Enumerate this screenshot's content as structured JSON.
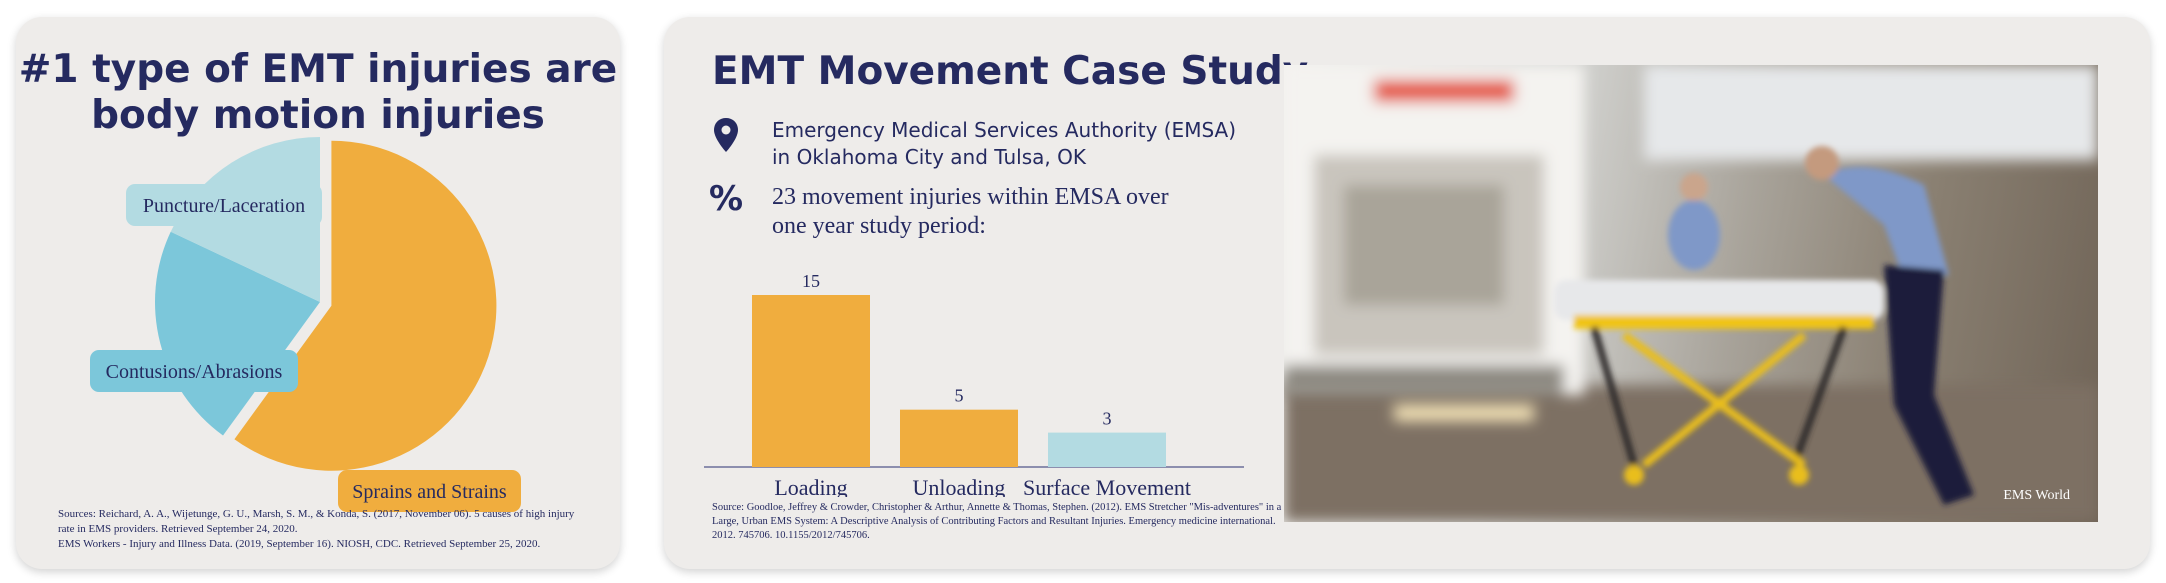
{
  "left_panel": {
    "title": "#1 type of EMT injuries are body motion injuries",
    "sources": [
      "Sources: Reichard, A. A., Wijetunge, G. U., Marsh, S. M., & Konda, S. (2017, November 06). 5 causes of high injury rate in EMS providers. Retrieved September 24, 2020.",
      "EMS Workers - Injury and Illness Data. (2019, September 16). NIOSH, CDC. Retrieved September 25, 2020."
    ]
  },
  "right_panel": {
    "title": "EMT Movement Case Study",
    "location_icon": "map-pin-icon",
    "location_text": "Emergency Medical Services Authority (EMSA)\nin Oklahoma City and Tulsa, OK",
    "percent_icon": "%",
    "percent_text": "23 movement injuries within EMSA over\none year study period:",
    "sources": "Source: Goodloe, Jeffrey & Crowder, Christopher & Arthur, Annette & Thomas, Stephen. (2012). EMS Stretcher \"Mis-adventures\" in a Large, Urban EMS System: A Descriptive Analysis of Contributing Factors and Resultant Injuries. Emergency medicine international. 2012. 745706. 10.1155/2012/745706.",
    "photo_credit": "EMS World"
  },
  "chart_data": [
    {
      "type": "pie",
      "title": "",
      "slices": [
        {
          "label": "Sprains and Strains",
          "value": 60,
          "color": "#f0ad3e",
          "exploded": true
        },
        {
          "label": "Contusions/Abrasions",
          "value": 22,
          "color": "#7cc7da",
          "exploded": false
        },
        {
          "label": "Puncture/Laceration",
          "value": 18,
          "color": "#b3dbe2",
          "exploded": false
        }
      ]
    },
    {
      "type": "bar",
      "title": "",
      "categories": [
        "Loading",
        "Unloading",
        "Surface Movement"
      ],
      "values": [
        15,
        5,
        3
      ],
      "colors": [
        "#f0ad3e",
        "#f0ad3e",
        "#b3dbe2"
      ],
      "ylim": [
        0,
        15
      ],
      "grid": false
    }
  ]
}
